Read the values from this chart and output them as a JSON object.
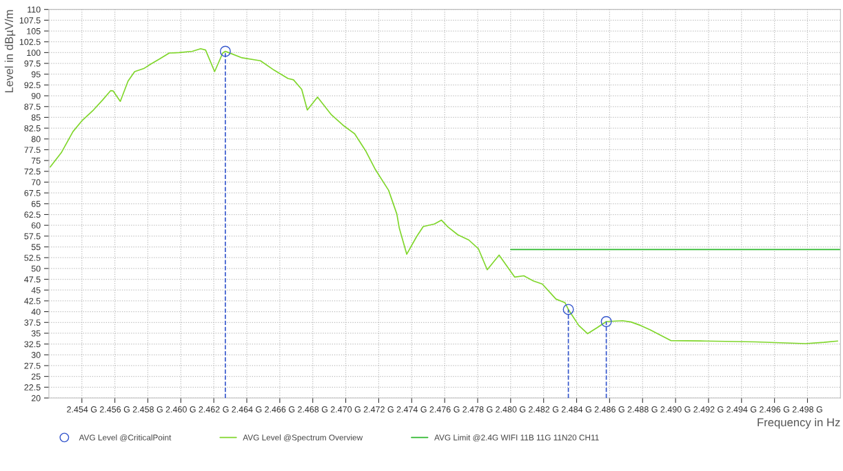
{
  "chart_data": {
    "type": "line",
    "xlabel": "Frequency in Hz",
    "ylabel": "Level in dBµV/m",
    "xlim": [
      2.452,
      2.5
    ],
    "ylim": [
      20,
      110
    ],
    "xticks": [
      {
        "value": 2.454,
        "label": "2.454 G"
      },
      {
        "value": 2.456,
        "label": "2.456 G"
      },
      {
        "value": 2.458,
        "label": "2.458 G"
      },
      {
        "value": 2.46,
        "label": "2.460 G"
      },
      {
        "value": 2.462,
        "label": "2.462 G"
      },
      {
        "value": 2.464,
        "label": "2.464 G"
      },
      {
        "value": 2.466,
        "label": "2.466 G"
      },
      {
        "value": 2.468,
        "label": "2.468 G"
      },
      {
        "value": 2.47,
        "label": "2.470 G"
      },
      {
        "value": 2.472,
        "label": "2.472 G"
      },
      {
        "value": 2.474,
        "label": "2.474 G"
      },
      {
        "value": 2.476,
        "label": "2.476 G"
      },
      {
        "value": 2.478,
        "label": "2.478 G"
      },
      {
        "value": 2.48,
        "label": "2.480 G"
      },
      {
        "value": 2.482,
        "label": "2.482 G"
      },
      {
        "value": 2.484,
        "label": "2.484 G"
      },
      {
        "value": 2.486,
        "label": "2.486 G"
      },
      {
        "value": 2.488,
        "label": "2.488 G"
      },
      {
        "value": 2.49,
        "label": "2.490 G"
      },
      {
        "value": 2.492,
        "label": "2.492 G"
      },
      {
        "value": 2.494,
        "label": "2.494 G"
      },
      {
        "value": 2.496,
        "label": "2.496 G"
      },
      {
        "value": 2.498,
        "label": "2.498 G"
      }
    ],
    "yticks": [
      20,
      22.5,
      25,
      27.5,
      30,
      32.5,
      35,
      37.5,
      40,
      42.5,
      45,
      47.5,
      50,
      52.5,
      55,
      57.5,
      60,
      62.5,
      65,
      67.5,
      70,
      72.5,
      75,
      77.5,
      80,
      82.5,
      85,
      87.5,
      90,
      92.5,
      95,
      97.5,
      100,
      102.5,
      105,
      107.5,
      110
    ],
    "grid": true,
    "legend": "bottom",
    "series": [
      {
        "name": "AVG Level @CriticalPoint",
        "type": "lollipop",
        "marker": "circle",
        "line_style": "dashed",
        "color": "#3355cc",
        "x": [
          2.4627,
          2.4835,
          2.4858
        ],
        "values": [
          100.3,
          40.5,
          37.7
        ]
      },
      {
        "name": "AVG Level @Spectrum Overview",
        "marker": "none",
        "line_style": "solid",
        "color": "#7fd62a",
        "x": [
          2.45208,
          2.45275,
          2.45346,
          2.454,
          2.4547,
          2.45525,
          2.45575,
          2.4559,
          2.45633,
          2.4568,
          2.4572,
          2.45775,
          2.4582,
          2.4587,
          2.4593,
          2.4599,
          2.4607,
          2.4612,
          2.4615,
          2.46205,
          2.46254,
          2.4627,
          2.4629,
          2.46371,
          2.46483,
          2.46567,
          2.4665,
          2.46683,
          2.46733,
          2.46767,
          2.46829,
          2.46913,
          2.46983,
          2.47054,
          2.4712,
          2.4718,
          2.4726,
          2.4731,
          2.47325,
          2.4737,
          2.4743,
          2.4747,
          2.47538,
          2.4758,
          2.4762,
          2.4768,
          2.47746,
          2.47804,
          2.47858,
          2.4793,
          2.48025,
          2.4808,
          2.48138,
          2.48192,
          2.48275,
          2.48329,
          2.4835,
          2.48413,
          2.48467,
          2.48525,
          2.4858,
          2.48679,
          2.4873,
          2.48788,
          2.48846,
          2.48971,
          2.4918,
          2.49483,
          2.49788,
          2.499,
          2.49983
        ],
        "values": [
          73.5,
          76.8,
          81.7,
          84.2,
          86.7,
          89.0,
          91.2,
          91.1,
          88.7,
          93.4,
          95.6,
          96.3,
          97.4,
          98.5,
          99.9,
          100.0,
          100.3,
          100.9,
          100.6,
          95.6,
          99.9,
          100.3,
          100.0,
          98.8,
          98.1,
          95.9,
          94.0,
          93.7,
          91.5,
          86.7,
          89.7,
          85.6,
          83.2,
          81.2,
          77.3,
          72.9,
          68.1,
          62.6,
          59.3,
          53.3,
          57.4,
          59.7,
          60.3,
          61.2,
          59.6,
          57.8,
          56.6,
          54.6,
          49.7,
          53.1,
          48.0,
          48.3,
          47.1,
          46.4,
          42.9,
          42.1,
          40.5,
          36.8,
          34.9,
          36.3,
          37.7,
          37.9,
          37.6,
          36.8,
          35.8,
          33.3,
          33.2,
          33.0,
          32.6,
          32.9,
          33.2
        ]
      },
      {
        "name": "AVG Limit @2.4G WIFI 11B 11G 11N20 CH11",
        "marker": "none",
        "line_style": "solid",
        "color": "#2db82d",
        "x": [
          2.48,
          2.5
        ],
        "values": [
          54.4,
          54.4
        ]
      }
    ]
  }
}
